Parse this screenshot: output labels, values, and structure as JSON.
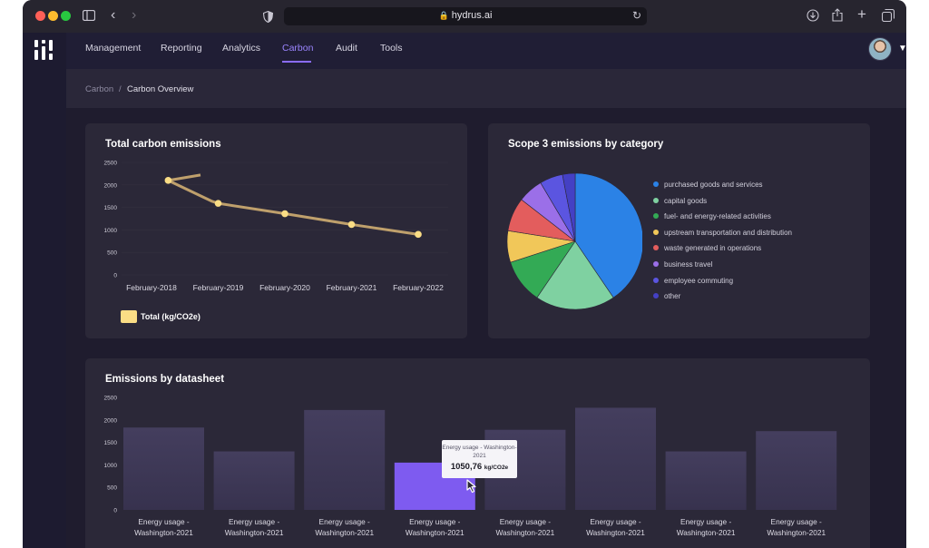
{
  "browser": {
    "url": "hydrus.ai",
    "traffic_lights": [
      "#fe5f57",
      "#febc2e",
      "#28c840"
    ]
  },
  "nav": {
    "items": [
      {
        "label": "Management"
      },
      {
        "label": "Reporting"
      },
      {
        "label": "Analytics"
      },
      {
        "label": "Carbon",
        "active": true
      },
      {
        "label": "Audit"
      },
      {
        "label": "Tools"
      }
    ]
  },
  "breadcrumb": {
    "parent": "Carbon",
    "separator": "/",
    "current": "Carbon Overview"
  },
  "colors": {
    "accent": "#8a6cff",
    "line": "#bfa06c",
    "point": "#fadd85",
    "bar": "#3f3a59",
    "bar_highlight": "#7e5bf0"
  },
  "cards": {
    "total": {
      "title": "Total carbon emissions",
      "legend_label": "Total (kg/CO2e)"
    },
    "scope3": {
      "title": "Scope 3 emissions by category"
    },
    "datasheet": {
      "title": "Emissions by datasheet"
    }
  },
  "tooltip": {
    "label": "Energy usage - Washington-2021",
    "value": "1050,76",
    "unit": "kg/CO2e"
  },
  "chart_data": [
    {
      "type": "line",
      "title": "Total carbon emissions",
      "categories": [
        "February-2018",
        "February-2019",
        "February-2020",
        "February-2021",
        "February-2022"
      ],
      "x": [
        0.25,
        1,
        2,
        3,
        4
      ],
      "series": [
        {
          "name": "Total (kg/CO2e)",
          "values": [
            2220,
            2100,
            1640,
            1590,
            1360,
            1120,
            900
          ],
          "x": [
            0,
            0.25,
            0.9,
            1,
            2,
            3,
            4
          ],
          "markers": [
            1,
            3,
            4,
            5,
            6
          ]
        }
      ],
      "yticks": [
        0,
        500,
        1000,
        1500,
        2000,
        2500
      ],
      "ylim": [
        0,
        2500
      ],
      "legend": "bottom-left"
    },
    {
      "type": "pie",
      "title": "Scope 3 emissions by category",
      "labels": [
        "purchased goods and services",
        "capital goods",
        "fuel- and energy-related activities",
        "upstream transportation and distribution",
        "waste generated in operations",
        "business travel",
        "employee commuting",
        "other"
      ],
      "values": [
        40.5,
        19,
        10.5,
        7.5,
        8,
        6,
        5.5,
        3
      ],
      "colors": [
        "#2b82e6",
        "#7fd1a1",
        "#33aa55",
        "#f1c759",
        "#e35d5d",
        "#9b6fe8",
        "#5b55e0",
        "#4440c4"
      ],
      "legend": "right"
    },
    {
      "type": "bar",
      "title": "Emissions by datasheet",
      "categories": [
        "Energy usage - Washington-2021",
        "Energy usage - Washington-2021",
        "Energy usage - Washington-2021",
        "Energy usage - Washington-2021",
        "Energy usage - Washington-2021",
        "Energy usage - Washington-2021",
        "Energy usage - Washington-2021",
        "Energy usage - Washington-2021"
      ],
      "values": [
        1830,
        1300,
        2220,
        1050.76,
        1780,
        2270,
        1300,
        1750
      ],
      "highlighted_index": 3,
      "yticks": [
        0,
        500,
        1000,
        1500,
        2000,
        2500
      ],
      "ylim": [
        0,
        2500
      ]
    }
  ]
}
